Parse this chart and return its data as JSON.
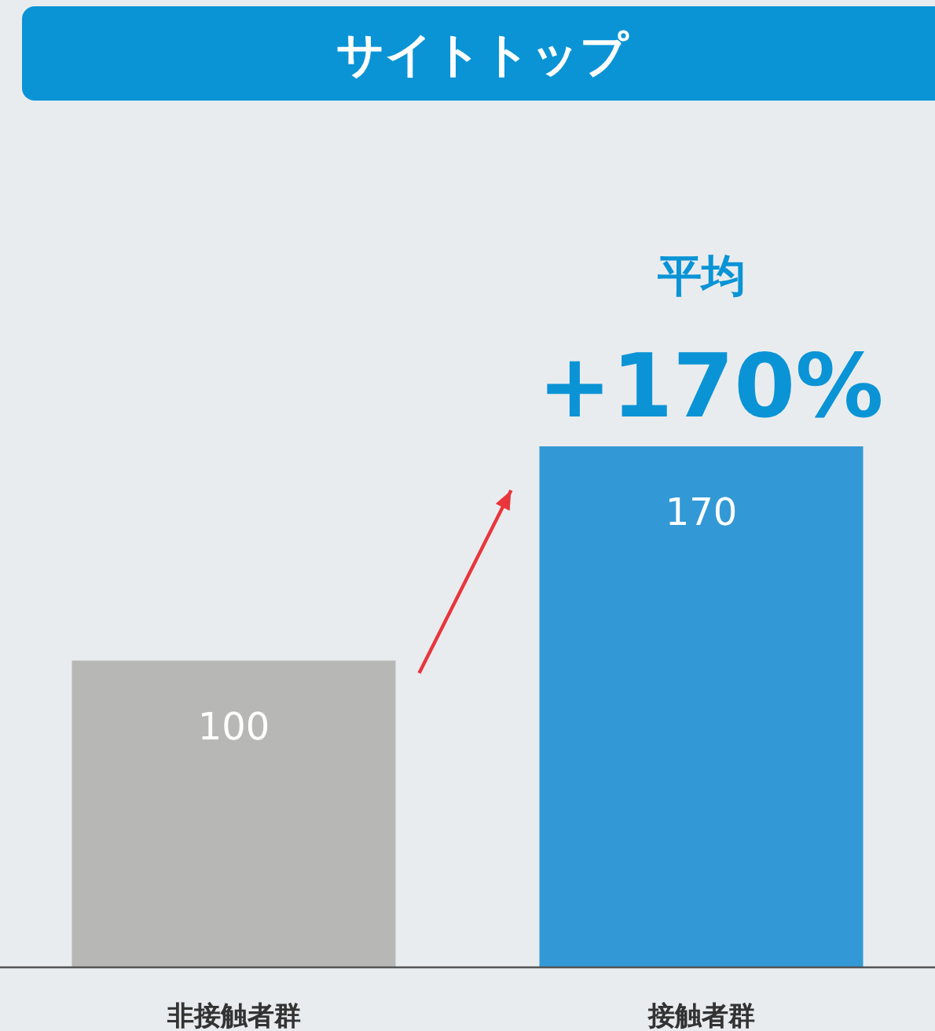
{
  "chart_data": {
    "type": "bar",
    "title": "サイトトップ",
    "categories": [
      "非接触者群",
      "接触者群"
    ],
    "values": [
      100,
      170
    ],
    "colors": [
      "#b7b8b6",
      "#3399d6"
    ],
    "data_labels": true,
    "annotations": [
      "平均",
      "+170%"
    ]
  }
}
